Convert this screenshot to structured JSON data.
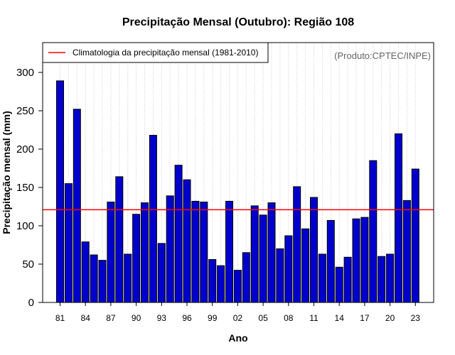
{
  "chart_data": {
    "type": "bar",
    "title": "Precipitação Mensal (Outubro): Região 108",
    "xlabel": "Ano",
    "ylabel": "Precipitação mensal (mm)",
    "ylim": [
      0,
      330
    ],
    "yticks": [
      0,
      50,
      100,
      150,
      200,
      250,
      300
    ],
    "grid": "vertical dotted lines at each bar",
    "categories": [
      "81",
      "82",
      "83",
      "84",
      "85",
      "86",
      "87",
      "88",
      "89",
      "90",
      "91",
      "92",
      "93",
      "94",
      "95",
      "96",
      "97",
      "98",
      "99",
      "00",
      "01",
      "02",
      "03",
      "04",
      "05",
      "06",
      "07",
      "08",
      "09",
      "10",
      "11",
      "12",
      "13",
      "14",
      "15",
      "16",
      "17",
      "18",
      "19",
      "20",
      "21",
      "22",
      "23"
    ],
    "xtick_labels": [
      "81",
      "84",
      "87",
      "90",
      "93",
      "96",
      "99",
      "02",
      "05",
      "08",
      "11",
      "14",
      "17",
      "20",
      "23"
    ],
    "values": [
      289,
      155,
      252,
      79,
      62,
      55,
      131,
      164,
      63,
      115,
      130,
      218,
      77,
      139,
      179,
      160,
      132,
      131,
      56,
      48,
      132,
      42,
      65,
      126,
      114,
      130,
      70,
      87,
      151,
      96,
      137,
      63,
      107,
      46,
      59,
      109,
      111,
      185,
      60,
      63,
      220,
      133,
      174
    ],
    "bar_color": "#0000CD",
    "climatology": {
      "value": 121,
      "color": "#FF0000",
      "legend_label": "Climatologia da precipitação mensal (1981-2010)"
    },
    "legend_position": "top-left",
    "credit": "(Produto:CPTEC/INPE)"
  }
}
